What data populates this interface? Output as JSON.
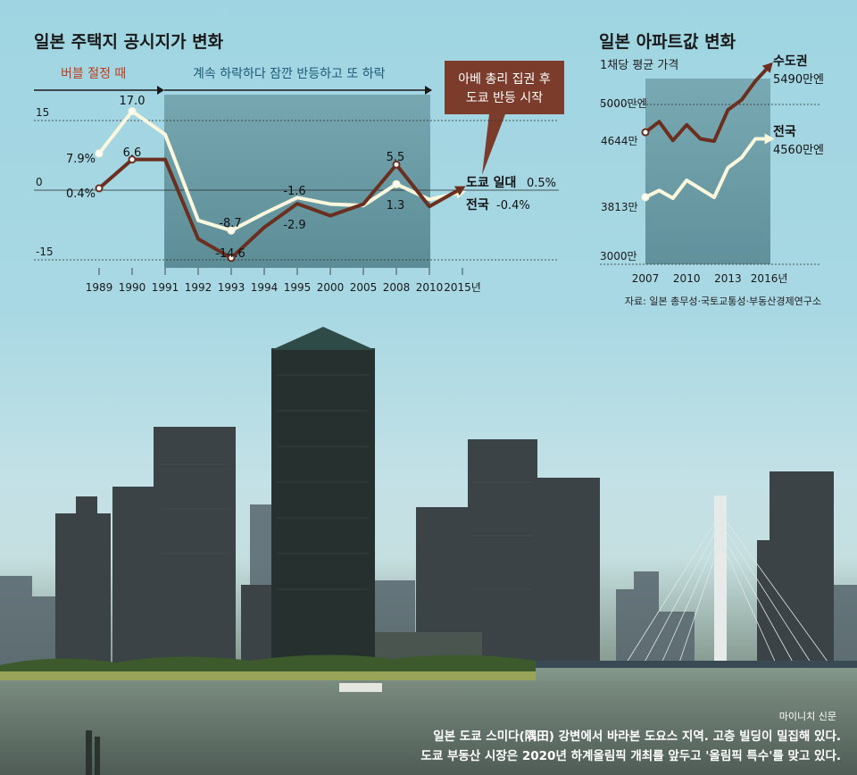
{
  "colors": {
    "tokyo": "#6b2f20",
    "national": "#fbf7dc",
    "panel": "#5f8e97",
    "arrow_head": "#1a1a1a",
    "callout": "#7b3c2c",
    "bubble_text": "#c43a1a",
    "decline_text": "#1e5a78"
  },
  "left_chart": {
    "title": "일본 주택지 공시지가 변화",
    "phase1_label": "버블 절정 때",
    "phase2_label": "계속 하락하다 잠깐 반등하고 또 하락",
    "callout_line1": "아베 총리 집권 후",
    "callout_line2": "도쿄 반등 시작",
    "y_ticks": [
      "15",
      "0",
      "-15"
    ],
    "tokyo_end_label": "도쿄 일대",
    "tokyo_end_value": "0.5%",
    "national_end_label": "전국",
    "national_end_value": "-0.4%",
    "point_labels": {
      "national_1989": "7.9%",
      "tokyo_1989": "0.4%",
      "national_1990": "17.0",
      "tokyo_1990": "6.6",
      "national_1993": "-8.7",
      "tokyo_1993": "-14.6",
      "national_1995": "-1.6",
      "tokyo_1995": "-2.9",
      "tokyo_2008": "5.5",
      "national_2008": "1.3"
    }
  },
  "right_chart": {
    "title": "일본 아파트값 변화",
    "subtitle": "1채당 평균 가격",
    "y_ticks": [
      "5000만엔",
      "3000만"
    ],
    "tokyo_label": "수도권",
    "tokyo_end_value": "5490만엔",
    "national_label": "전국",
    "national_end_value": "4560만엔",
    "tokyo_start_value": "4644만",
    "national_start_value": "3813만",
    "source": "자료: 일본 총무성·국토교통성·부동산경제연구소"
  },
  "photo": {
    "credit": "마이니치 신문",
    "caption_line1": "일본 도쿄 스미다(隅田) 강변에서 바라본 도요스 지역. 고층 빌딩이 밀집해 있다.",
    "caption_line2": "도쿄 부동산 시장은 2020년 하계올림픽 개최를 앞두고 '올림픽 특수'를 맞고 있다."
  },
  "chart_data": [
    {
      "type": "line",
      "title": "일본 주택지 공시지가 변화",
      "xlabel": "",
      "ylabel": "",
      "categories": [
        "1989",
        "1990",
        "1991",
        "1992",
        "1993",
        "1994",
        "1995",
        "2000",
        "2005",
        "2008",
        "2010",
        "2015년"
      ],
      "ylim": [
        -15,
        20
      ],
      "grid": true,
      "series": [
        {
          "name": "도쿄 일대",
          "values": [
            0.4,
            6.6,
            6.6,
            -10.5,
            -14.6,
            -8.0,
            -2.9,
            -5.5,
            -3.0,
            5.5,
            -3.5,
            0.5
          ]
        },
        {
          "name": "전국",
          "values": [
            7.9,
            17.0,
            12.0,
            -6.5,
            -8.7,
            -5.0,
            -1.6,
            -3.0,
            -3.3,
            1.3,
            -2.0,
            -0.4
          ]
        }
      ]
    },
    {
      "type": "line",
      "title": "일본 아파트값 변화",
      "subtitle": "1채당 평균 가격",
      "xlabel": "",
      "ylabel": "",
      "x": [
        2007,
        2008,
        2009,
        2010,
        2011,
        2012,
        2013,
        2014,
        2015,
        2016
      ],
      "x_tick_labels": [
        "2007",
        "2010",
        "2013",
        "2016년"
      ],
      "ylim": [
        3000,
        5700
      ],
      "grid": false,
      "series": [
        {
          "name": "수도권",
          "values": [
            4644,
            4780,
            4540,
            4740,
            4560,
            4530,
            4930,
            5060,
            5300,
            5490
          ]
        },
        {
          "name": "전국",
          "values": [
            3813,
            3900,
            3800,
            4030,
            3920,
            3810,
            4190,
            4320,
            4560,
            4560
          ]
        }
      ]
    }
  ]
}
